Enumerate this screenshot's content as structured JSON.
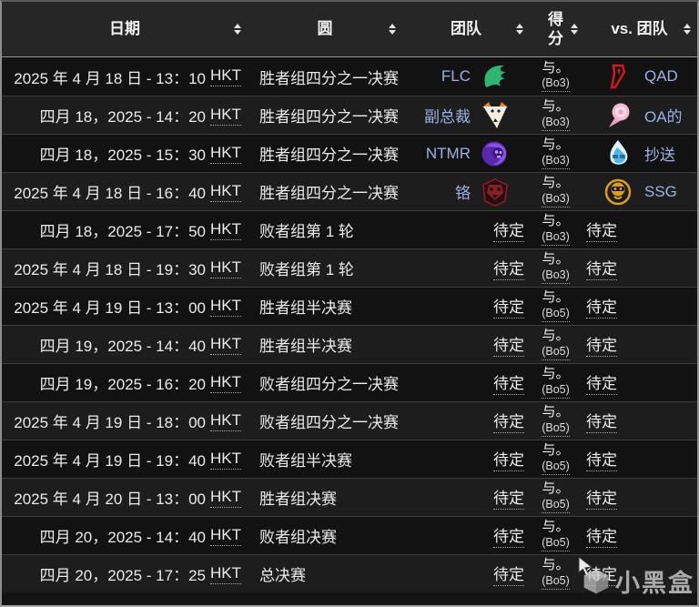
{
  "table": {
    "columns": [
      {
        "label": "日期"
      },
      {
        "label": "圆"
      },
      {
        "label": "团队"
      },
      {
        "label": "得分"
      },
      {
        "label": "vs. 团队"
      }
    ],
    "rows": [
      {
        "date": "2025 年 4 月 18 日 - 13：10",
        "tz": "HKT",
        "round": "胜者组四分之一决赛",
        "team1": {
          "name": "FLC",
          "icon": "falcons-logo-icon"
        },
        "team2": {
          "name": "QAD",
          "icon": "qad-logo-icon"
        },
        "vs": "与。",
        "bo": "(Bo3)"
      },
      {
        "date": "四月 18，2025 - 14：20",
        "tz": "HKT",
        "round": "胜者组四分之一决赛",
        "team1": {
          "name": "副总裁",
          "icon": "virtus-pro-logo-icon"
        },
        "team2": {
          "name": "OA的",
          "icon": "oa-rose-logo-icon"
        },
        "vs": "与。",
        "bo": "(Bo3)"
      },
      {
        "date": "四月 18，2025 - 15：30",
        "tz": "HKT",
        "round": "胜者组四分之一决赛",
        "team1": {
          "name": "NTMR",
          "icon": "ntmr-skull-logo-icon"
        },
        "team2": {
          "name": "抄送",
          "icon": "cc-flame-logo-icon"
        },
        "vs": "与。",
        "bo": "(Bo3)"
      },
      {
        "date": "2025 年 4 月 18 日 - 16：40",
        "tz": "HKT",
        "round": "胜者组四分之一决赛",
        "team1": {
          "name": "铬",
          "icon": "wolf-logo-icon"
        },
        "team2": {
          "name": "SSG",
          "icon": "ssg-monkey-logo-icon"
        },
        "vs": "与。",
        "bo": "(Bo3)"
      },
      {
        "date": "四月 18，2025 - 17：50",
        "tz": "HKT",
        "round": "败者组第 1 轮",
        "team1": {
          "name": "待定",
          "tbd": true
        },
        "team2": {
          "name": "待定",
          "tbd": true
        },
        "vs": "与。",
        "bo": "(Bo3)"
      },
      {
        "date": "2025 年 4 月 18 日 - 19：30",
        "tz": "HKT",
        "round": "败者组第 1 轮",
        "team1": {
          "name": "待定",
          "tbd": true
        },
        "team2": {
          "name": "待定",
          "tbd": true
        },
        "vs": "与。",
        "bo": "(Bo3)"
      },
      {
        "date": "2025 年 4 月 19 日 - 13：00",
        "tz": "HKT",
        "round": "胜者组半决赛",
        "team1": {
          "name": "待定",
          "tbd": true
        },
        "team2": {
          "name": "待定",
          "tbd": true
        },
        "vs": "与。",
        "bo": "(Bo5)"
      },
      {
        "date": "四月 19，2025 - 14：40",
        "tz": "HKT",
        "round": "胜者组半决赛",
        "team1": {
          "name": "待定",
          "tbd": true
        },
        "team2": {
          "name": "待定",
          "tbd": true
        },
        "vs": "与。",
        "bo": "(Bo5)"
      },
      {
        "date": "四月 19，2025 - 16：20",
        "tz": "HKT",
        "round": "败者组四分之一决赛",
        "team1": {
          "name": "待定",
          "tbd": true
        },
        "team2": {
          "name": "待定",
          "tbd": true
        },
        "vs": "与。",
        "bo": "(Bo5)"
      },
      {
        "date": "2025 年 4 月 19 日 - 18：00",
        "tz": "HKT",
        "round": "败者组四分之一决赛",
        "team1": {
          "name": "待定",
          "tbd": true
        },
        "team2": {
          "name": "待定",
          "tbd": true
        },
        "vs": "与。",
        "bo": "(Bo5)"
      },
      {
        "date": "2025 年 4 月 19 日 - 19：40",
        "tz": "HKT",
        "round": "败者组半决赛",
        "team1": {
          "name": "待定",
          "tbd": true
        },
        "team2": {
          "name": "待定",
          "tbd": true
        },
        "vs": "与。",
        "bo": "(Bo5)"
      },
      {
        "date": "2025 年 4 月 20 日 - 13：00",
        "tz": "HKT",
        "round": "胜者组决赛",
        "team1": {
          "name": "待定",
          "tbd": true
        },
        "team2": {
          "name": "待定",
          "tbd": true
        },
        "vs": "与。",
        "bo": "(Bo5)"
      },
      {
        "date": "四月 20，2025 - 14：40",
        "tz": "HKT",
        "round": "败者组决赛",
        "team1": {
          "name": "待定",
          "tbd": true
        },
        "team2": {
          "name": "待定",
          "tbd": true
        },
        "vs": "与。",
        "bo": "(Bo5)"
      },
      {
        "date": "四月 20，2025 - 17：25",
        "tz": "HKT",
        "round": "总决赛",
        "team1": {
          "name": "待定",
          "tbd": true
        },
        "team2": {
          "name": "待定",
          "tbd": true
        },
        "vs": "与。",
        "bo": "(Bo5)"
      }
    ]
  },
  "watermark": {
    "text": "小黑盒"
  },
  "colors": {
    "header_bg": "#262626",
    "row_odd_bg": "#121212",
    "row_even_bg": "#1d1d1d",
    "team_link": "#9db1e4",
    "falcons_green": "#2fb573",
    "virtus_orange": "#e8862c",
    "ntmr_purple": "#6d35c9",
    "qad_red": "#d01822",
    "oa_pink": "#f4b8d0",
    "cc_blue": "#4db8e8",
    "ssg_gold": "#d89d1e",
    "wolf_red": "#7a1a1f"
  }
}
